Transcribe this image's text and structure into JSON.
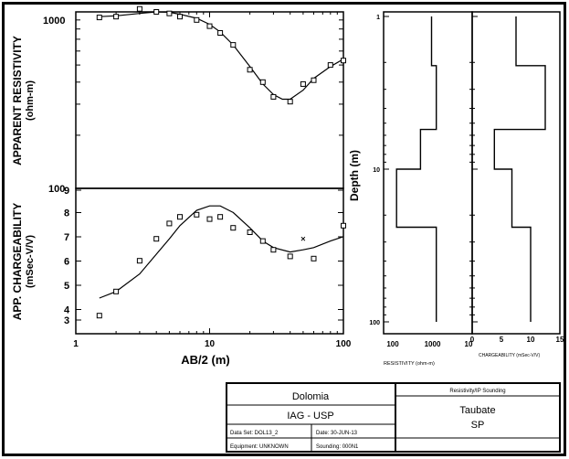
{
  "chart_data": [
    {
      "type": "scatter",
      "ylabel": "APPARENT RESISTIVITY",
      "yunit": "(ohm-m)",
      "yscale": "log",
      "xscale": "log",
      "ylim": [
        100,
        1000
      ],
      "xlim": [
        1,
        100
      ],
      "ytick_labels": [
        "1000",
        "100"
      ],
      "series": [
        {
          "kind": "observed",
          "marker": "square",
          "x": [
            1.5,
            2.0,
            3.0,
            4.0,
            5.0,
            6.0,
            8.0,
            10.0,
            12.0,
            15.0,
            20.0,
            25.0,
            30.0,
            40.0,
            50.0,
            60.0,
            80.0,
            100.0
          ],
          "y": [
            930,
            940,
            1040,
            1000,
            980,
            940,
            900,
            830,
            760,
            650,
            470,
            400,
            330,
            310,
            390,
            410,
            500,
            530
          ]
        },
        {
          "kind": "model-fit",
          "marker": "line",
          "x": [
            1.5,
            2.0,
            3.0,
            4.0,
            5.0,
            6.0,
            8.0,
            10.0,
            12.0,
            15.0,
            20.0,
            25.0,
            30.0,
            35.0,
            40.0,
            50.0,
            60.0,
            80.0,
            100.0
          ],
          "y": [
            940,
            950,
            980,
            1000,
            995,
            970,
            920,
            850,
            770,
            650,
            490,
            390,
            340,
            320,
            320,
            360,
            420,
            490,
            540
          ]
        }
      ]
    },
    {
      "type": "scatter",
      "ylabel": "APP. CHARGEABILITY",
      "yunit": "(mSec-V/V)",
      "xscale": "log",
      "ylim": [
        3,
        9
      ],
      "xlim": [
        1,
        100
      ],
      "ytick_labels": [
        "3",
        "4",
        "5",
        "6",
        "7",
        "8",
        "9"
      ],
      "xtick_labels": [
        "1",
        "10",
        "100"
      ],
      "xlabel": "AB/2 (m)",
      "series": [
        {
          "kind": "observed",
          "marker": "square",
          "x": [
            1.5,
            2.0,
            3.0,
            4.0,
            5.0,
            6.0,
            8.0,
            10.0,
            12.0,
            15.0,
            20.0,
            25.0,
            30.0,
            40.0,
            60.0,
            100.0
          ],
          "y": [
            3.2,
            4.3,
            5.7,
            6.7,
            7.4,
            7.7,
            7.8,
            7.6,
            7.7,
            7.2,
            7.0,
            6.6,
            6.2,
            5.9,
            5.8,
            7.3
          ]
        },
        {
          "kind": "observed",
          "marker": "x",
          "x": [
            50.0
          ],
          "y": [
            6.7
          ]
        },
        {
          "kind": "model-fit",
          "marker": "line",
          "x": [
            1.5,
            2.0,
            3.0,
            4.0,
            5.0,
            6.0,
            8.0,
            10.0,
            12.0,
            15.0,
            20.0,
            25.0,
            30.0,
            40.0,
            50.0,
            60.0,
            80.0,
            100.0
          ],
          "y": [
            4.0,
            4.3,
            5.1,
            6.0,
            6.7,
            7.3,
            8.0,
            8.2,
            8.2,
            7.9,
            7.2,
            6.6,
            6.3,
            6.1,
            6.2,
            6.3,
            6.6,
            6.8
          ]
        }
      ]
    },
    {
      "type": "line",
      "subtype": "layered-model-step",
      "ylabel": "Depth (m)",
      "xlabel": "RESISTIVITY (ohm-m)",
      "xscale": "log",
      "yscale": "log",
      "xlim": [
        100,
        10000
      ],
      "ylim": [
        1,
        100
      ],
      "xtick_labels": [
        "100",
        "1000",
        "10"
      ],
      "ytick_labels": [
        "1",
        "10",
        "100"
      ],
      "layers": [
        {
          "top": 1,
          "bottom": 2.1,
          "value": 950
        },
        {
          "top": 2.1,
          "bottom": 5.5,
          "value": 1250
        },
        {
          "top": 5.5,
          "bottom": 10,
          "value": 500
        },
        {
          "top": 10,
          "bottom": 24,
          "value": 125
        },
        {
          "top": 24,
          "bottom": 100,
          "value": 1250
        }
      ]
    },
    {
      "type": "line",
      "subtype": "layered-model-step",
      "xlabel": "CHARGEABILITY (mSec-V/V)",
      "yscale": "log",
      "xlim": [
        0,
        15
      ],
      "ylim": [
        1,
        100
      ],
      "xtick_labels": [
        "0",
        "5",
        "10",
        "15"
      ],
      "layers": [
        {
          "top": 1,
          "bottom": 2.1,
          "value": 7.5
        },
        {
          "top": 2.1,
          "bottom": 5.5,
          "value": 12.5
        },
        {
          "top": 5.5,
          "bottom": 10,
          "value": 3.8
        },
        {
          "top": 10,
          "bottom": 24,
          "value": 6.8
        },
        {
          "top": 24,
          "bottom": 100,
          "value": 10
        }
      ]
    }
  ],
  "title_block": {
    "location": "Dolomia",
    "organization": "IAG - USP",
    "data_set": "Data Set: DOL13_2",
    "date": "Date: 30-JUN-13",
    "equipment": "Equipment: UNKNOWN",
    "sounding": "Sounding: 000N1",
    "survey_type": "Resistivity/IP Sounding",
    "city": "Taubate",
    "state": "SP"
  }
}
